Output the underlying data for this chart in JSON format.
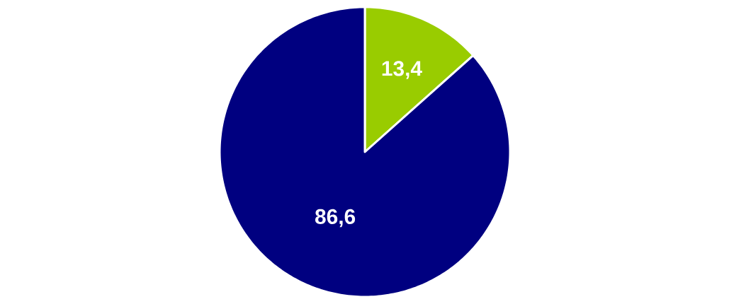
{
  "chart_data": {
    "type": "pie",
    "categories": [
      null,
      null
    ],
    "values": [
      13.4,
      86.6
    ],
    "colors": [
      "#99cc00",
      "#000080"
    ],
    "value_labels": [
      "13,4",
      "86,6"
    ]
  }
}
